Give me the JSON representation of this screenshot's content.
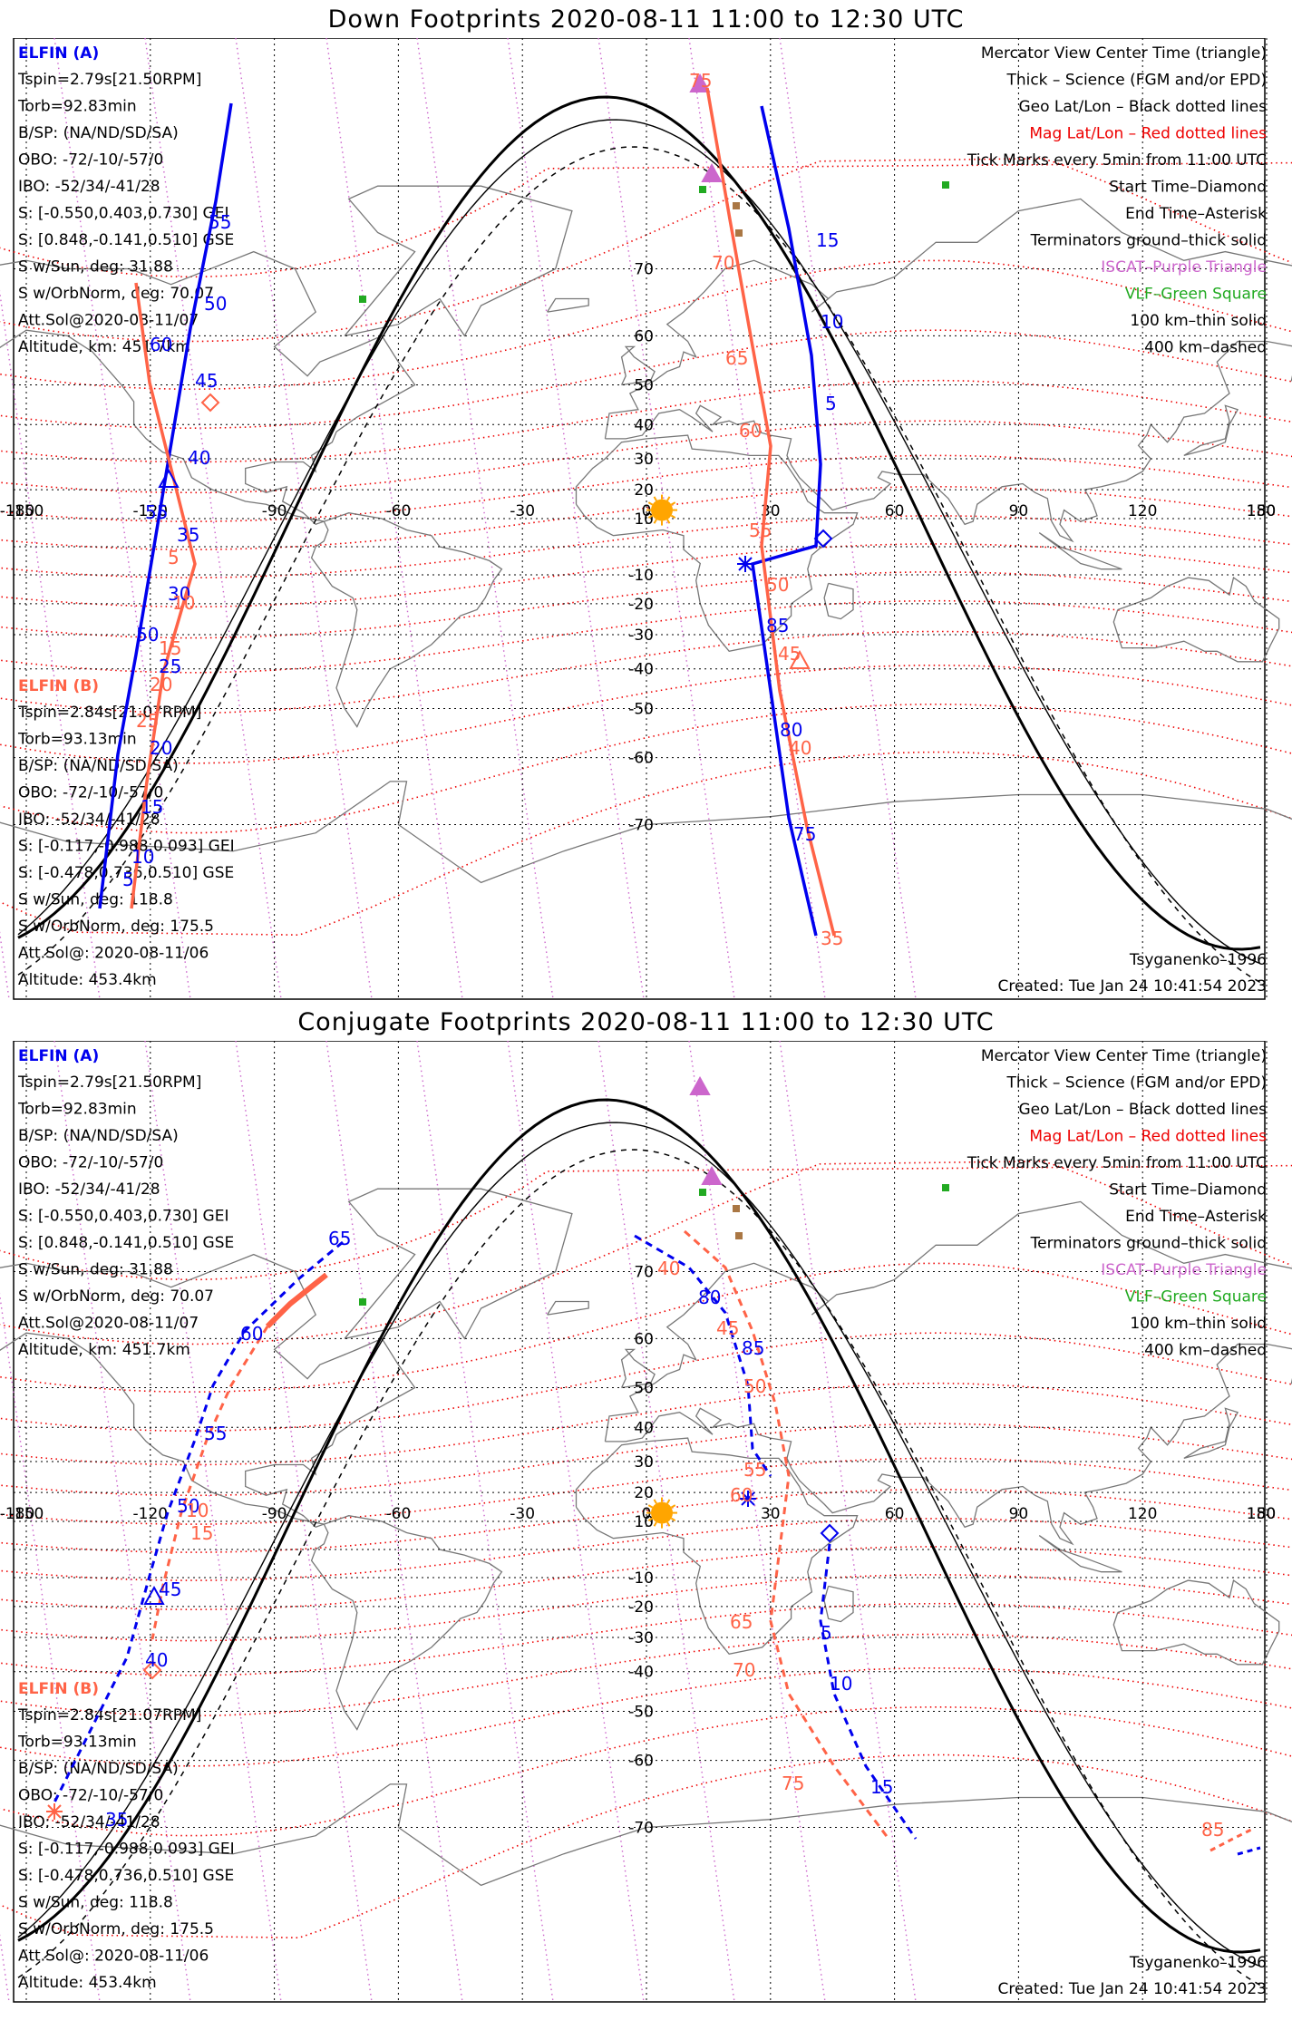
{
  "colors": {
    "elfin_a": "#0000ee",
    "elfin_b": "#ff6347",
    "mag_grid": "#ee0000",
    "geo_grid": "#000000",
    "iscat": "#cc66cc",
    "vlf": "#22aa22",
    "sun": "#ffa500",
    "coast": "#777777"
  },
  "legend_lines": [
    {
      "text": "Mercator View Center Time (triangle)",
      "color": "#000000"
    },
    {
      "text": "Thick – Science (FGM and/or EPD)",
      "color": "#000000"
    },
    {
      "text": "Geo Lat/Lon – Black dotted lines",
      "color": "#000000"
    },
    {
      "text": "Mag Lat/Lon – Red dotted lines",
      "color": "#ee0000"
    },
    {
      "text": "Tick Marks every 5min from 11:00 UTC",
      "color": "#000000"
    },
    {
      "text": "Start Time–Diamond",
      "color": "#000000"
    },
    {
      "text": "End Time–Asterisk",
      "color": "#000000"
    },
    {
      "text": "Terminators ground–thick solid",
      "color": "#000000"
    },
    {
      "text": "ISCAT–Purple Triangle",
      "color": "#cc66cc"
    },
    {
      "text": "VLF–Green Square",
      "color": "#22aa22"
    },
    {
      "text": "100 km–thin solid",
      "color": "#000000"
    },
    {
      "text": "400 km–dashed",
      "color": "#000000"
    }
  ],
  "elfin_a_info": {
    "title": "ELFIN (A)",
    "lines": [
      "Tspin=2.79s[21.50RPM]",
      "Torb=92.83min",
      "B/SP: (NA/ND/SD/SA)",
      "OBO: -72/-10/-57/0",
      "IBO: -52/34/-41/28",
      "S: [-0.550,0.403,0.730] GEI",
      "S: [0.848,-0.141,0.510] GSE",
      "S w/Sun, deg: 31.88",
      "S w/OrbNorm, deg: 70.07",
      "Att.Sol@2020-08-11/07",
      "Altitude, km: 451.7km"
    ]
  },
  "elfin_b_info": {
    "title": "ELFIN (B)",
    "lines": [
      "Tspin=2.84s[21.07RPM]",
      "Torb=93.13min",
      "B/SP: (NA/ND/SD/SA)",
      "OBO: -72/-10/-57/0",
      "IBO: -52/34/-41/28",
      "S: [-0.117,-0.988,0.093] GEI",
      "S: [-0.478,0.736,0.510] GSE",
      "S w/Sun, deg: 118.8",
      "S w/OrbNorm, deg: 175.5",
      "Att.Sol@: 2020-08-11/06",
      "Altitude: 453.4km"
    ]
  },
  "model": "Tsyganenko–1996",
  "created": "Created: Tue Jan 24 10:41:54 2023",
  "lon_ticks": [
    "-180",
    "-150",
    "-120",
    "-90",
    "-60",
    "-30",
    "0",
    "30",
    "60",
    "90",
    "120",
    "150",
    "180"
  ],
  "lat_ticks": [
    "70",
    "60",
    "50",
    "40",
    "30",
    "20",
    "10",
    "-10",
    "-20",
    "-30",
    "-40",
    "-50",
    "-60",
    "-70"
  ],
  "panels": [
    {
      "title": "Down Footprints 2020-08-11 11:00 to 12:30 UTC",
      "elfin_a_labels": [
        "15",
        "10",
        "5",
        "85",
        "80",
        "75",
        "55",
        "50",
        "45",
        "40",
        "35",
        "30",
        "25",
        "20",
        "15",
        "10",
        "5",
        "60",
        "55",
        "50"
      ],
      "elfin_b_labels": [
        "75",
        "70",
        "65",
        "60",
        "55",
        "50",
        "45",
        "40",
        "35",
        "5",
        "10",
        "15",
        "20",
        "25"
      ]
    },
    {
      "title": "Conjugate Footprints 2020-08-11 11:00 to 12:30 UTC",
      "elfin_a_labels": [
        "65",
        "60",
        "55",
        "50",
        "45",
        "40",
        "35",
        "80",
        "85",
        "5",
        "10",
        "15"
      ],
      "elfin_b_labels": [
        "40",
        "45",
        "50",
        "55",
        "60",
        "65",
        "70",
        "75",
        "10",
        "15",
        "85"
      ]
    }
  ]
}
